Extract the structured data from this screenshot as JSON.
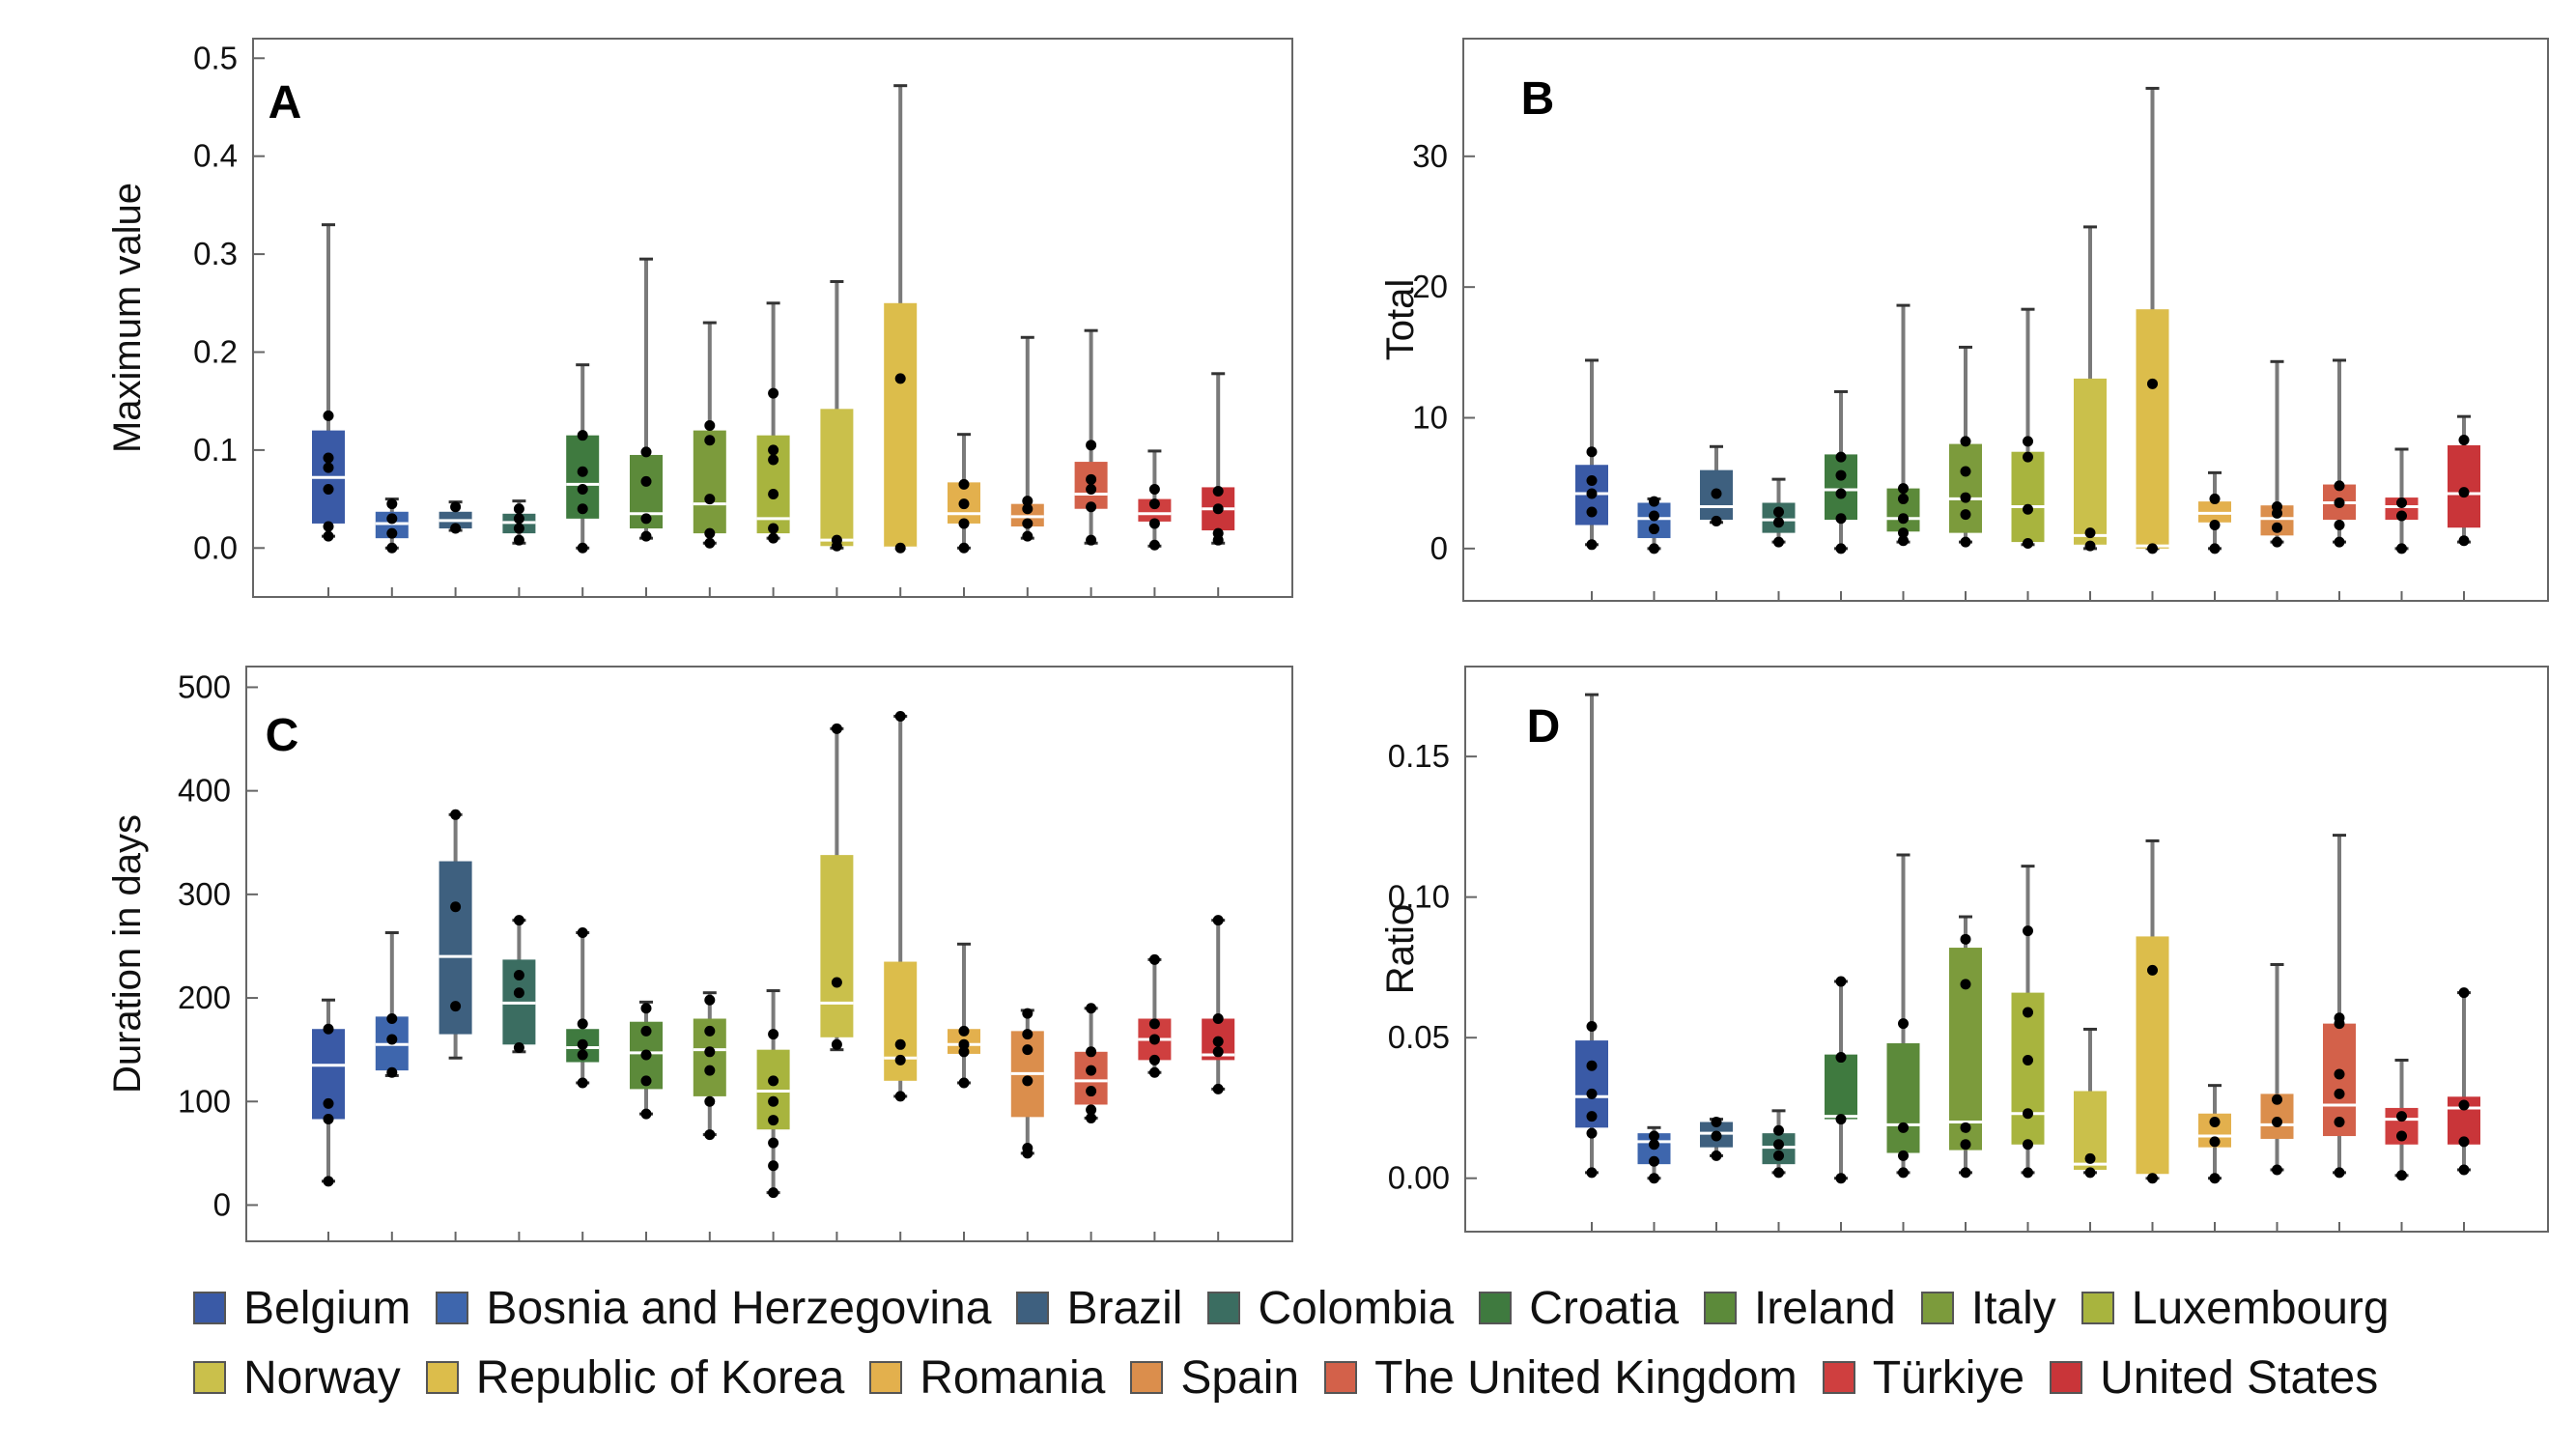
{
  "chart_data": [
    {
      "type": "box",
      "panel_label": "A",
      "ylabel": "Maximum value",
      "ylim": [
        -0.05,
        0.52
      ],
      "yticks": [
        "0.0",
        "0.1",
        "0.2",
        "0.3",
        "0.4",
        "0.5"
      ],
      "boxes": [
        {
          "country": "Belgium",
          "min": 0.012,
          "q1": 0.025,
          "median": 0.072,
          "q3": 0.12,
          "max": 0.33,
          "points": [
            0.012,
            0.022,
            0.06,
            0.082,
            0.092,
            0.135
          ]
        },
        {
          "country": "Bosnia and Herzegovina",
          "min": 0.0,
          "q1": 0.01,
          "median": 0.025,
          "q3": 0.037,
          "max": 0.05,
          "points": [
            0.0,
            0.015,
            0.03,
            0.045
          ]
        },
        {
          "country": "Brazil",
          "min": 0.018,
          "q1": 0.02,
          "median": 0.028,
          "q3": 0.037,
          "max": 0.047,
          "points": [
            0.02,
            0.042
          ]
        },
        {
          "country": "Colombia",
          "min": 0.005,
          "q1": 0.015,
          "median": 0.026,
          "q3": 0.035,
          "max": 0.048,
          "points": [
            0.008,
            0.02,
            0.03,
            0.04
          ]
        },
        {
          "country": "Croatia",
          "min": 0.0,
          "q1": 0.03,
          "median": 0.065,
          "q3": 0.115,
          "max": 0.187,
          "points": [
            0.0,
            0.04,
            0.06,
            0.078,
            0.115
          ]
        },
        {
          "country": "Ireland",
          "min": 0.01,
          "q1": 0.02,
          "median": 0.035,
          "q3": 0.095,
          "max": 0.295,
          "points": [
            0.012,
            0.03,
            0.068,
            0.098
          ]
        },
        {
          "country": "Italy",
          "min": 0.005,
          "q1": 0.015,
          "median": 0.045,
          "q3": 0.12,
          "max": 0.23,
          "points": [
            0.005,
            0.015,
            0.05,
            0.11,
            0.125
          ]
        },
        {
          "country": "Luxembourg",
          "min": 0.01,
          "q1": 0.015,
          "median": 0.03,
          "q3": 0.115,
          "max": 0.25,
          "points": [
            0.01,
            0.02,
            0.055,
            0.09,
            0.1,
            0.158
          ]
        },
        {
          "country": "Norway",
          "min": 0.0,
          "q1": 0.002,
          "median": 0.008,
          "q3": 0.142,
          "max": 0.272,
          "points": [
            0.002,
            0.008
          ]
        },
        {
          "country": "Republic of Korea",
          "min": 0.0,
          "q1": 0.0,
          "median": 0.0,
          "q3": 0.25,
          "max": 0.472,
          "points": [
            0.0,
            0.173
          ]
        },
        {
          "country": "Romania",
          "min": 0.0,
          "q1": 0.025,
          "median": 0.035,
          "q3": 0.067,
          "max": 0.116,
          "points": [
            0.0,
            0.025,
            0.045,
            0.065
          ]
        },
        {
          "country": "Spain",
          "min": 0.01,
          "q1": 0.022,
          "median": 0.032,
          "q3": 0.045,
          "max": 0.215,
          "points": [
            0.012,
            0.025,
            0.04,
            0.048
          ]
        },
        {
          "country": "The United Kingdom",
          "min": 0.005,
          "q1": 0.04,
          "median": 0.055,
          "q3": 0.088,
          "max": 0.222,
          "points": [
            0.008,
            0.042,
            0.06,
            0.07,
            0.105
          ]
        },
        {
          "country": "Türkiye",
          "min": 0.002,
          "q1": 0.027,
          "median": 0.035,
          "q3": 0.05,
          "max": 0.099,
          "points": [
            0.003,
            0.025,
            0.045,
            0.06
          ]
        },
        {
          "country": "United States",
          "min": 0.005,
          "q1": 0.018,
          "median": 0.04,
          "q3": 0.062,
          "max": 0.178,
          "points": [
            0.008,
            0.015,
            0.04,
            0.058
          ]
        }
      ]
    },
    {
      "type": "box",
      "panel_label": "B",
      "ylabel": "Total",
      "ylim": [
        -4,
        39
      ],
      "yticks": [
        "0",
        "10",
        "20",
        "30"
      ],
      "boxes": [
        {
          "country": "Belgium",
          "min": 0.3,
          "q1": 1.8,
          "median": 4.2,
          "q3": 6.4,
          "max": 14.4,
          "points": [
            0.3,
            2.8,
            4.2,
            5.2,
            7.4
          ]
        },
        {
          "country": "Bosnia and Herzegovina",
          "min": 0.0,
          "q1": 0.8,
          "median": 2.3,
          "q3": 3.5,
          "max": 3.8,
          "points": [
            0.0,
            1.5,
            2.5,
            3.6
          ]
        },
        {
          "country": "Brazil",
          "min": 2.0,
          "q1": 2.2,
          "median": 3.2,
          "q3": 6.0,
          "max": 7.8,
          "points": [
            2.1,
            4.2
          ]
        },
        {
          "country": "Colombia",
          "min": 0.5,
          "q1": 1.2,
          "median": 2.2,
          "q3": 3.5,
          "max": 5.3,
          "points": [
            0.5,
            2.0,
            2.8
          ]
        },
        {
          "country": "Croatia",
          "min": 0.0,
          "q1": 2.2,
          "median": 4.5,
          "q3": 7.2,
          "max": 12.0,
          "points": [
            0.0,
            2.3,
            4.2,
            5.6,
            7.0
          ]
        },
        {
          "country": "Ireland",
          "min": 0.5,
          "q1": 1.3,
          "median": 2.3,
          "q3": 4.6,
          "max": 18.6,
          "points": [
            0.6,
            1.2,
            2.3,
            3.8,
            4.6
          ]
        },
        {
          "country": "Italy",
          "min": 0.5,
          "q1": 1.2,
          "median": 3.8,
          "q3": 8.0,
          "max": 15.4,
          "points": [
            0.5,
            2.6,
            3.9,
            5.9,
            8.2
          ]
        },
        {
          "country": "Luxembourg",
          "min": 0.3,
          "q1": 0.5,
          "median": 3.2,
          "q3": 7.4,
          "max": 18.3,
          "points": [
            0.4,
            3.0,
            7.0,
            8.2
          ]
        },
        {
          "country": "Norway",
          "min": 0.0,
          "q1": 0.3,
          "median": 1.0,
          "q3": 13.0,
          "max": 24.6,
          "points": [
            0.2,
            1.2
          ]
        },
        {
          "country": "Republic of Korea",
          "min": 0.0,
          "q1": 0.0,
          "median": 0.2,
          "q3": 18.3,
          "max": 35.2,
          "points": [
            0.0,
            12.6
          ]
        },
        {
          "country": "Romania",
          "min": 0.0,
          "q1": 2.0,
          "median": 2.7,
          "q3": 3.6,
          "max": 5.8,
          "points": [
            0.0,
            1.8,
            3.8
          ]
        },
        {
          "country": "Spain",
          "min": 0.5,
          "q1": 1.0,
          "median": 2.3,
          "q3": 3.3,
          "max": 14.3,
          "points": [
            0.5,
            1.6,
            2.7,
            3.2
          ]
        },
        {
          "country": "The United Kingdom",
          "min": 0.5,
          "q1": 2.2,
          "median": 3.5,
          "q3": 4.9,
          "max": 14.4,
          "points": [
            0.5,
            1.8,
            3.5,
            4.8
          ]
        },
        {
          "country": "Türkiye",
          "min": 0.0,
          "q1": 2.2,
          "median": 3.2,
          "q3": 3.9,
          "max": 7.6,
          "points": [
            0.0,
            2.5,
            3.5
          ]
        },
        {
          "country": "United States",
          "min": 0.5,
          "q1": 1.6,
          "median": 4.2,
          "q3": 7.9,
          "max": 10.1,
          "points": [
            0.6,
            4.3,
            8.3
          ]
        }
      ]
    },
    {
      "type": "box",
      "panel_label": "C",
      "ylabel": "Duration in days",
      "ylim": [
        -35,
        520
      ],
      "yticks": [
        "0",
        "100",
        "200",
        "300",
        "400",
        "500"
      ],
      "boxes": [
        {
          "country": "Belgium",
          "min": 23,
          "q1": 83,
          "median": 135,
          "q3": 170,
          "max": 198,
          "points": [
            23,
            83,
            98,
            170
          ]
        },
        {
          "country": "Bosnia and Herzegovina",
          "min": 125,
          "q1": 130,
          "median": 155,
          "q3": 182,
          "max": 263,
          "points": [
            128,
            160,
            180
          ]
        },
        {
          "country": "Brazil",
          "min": 142,
          "q1": 165,
          "median": 240,
          "q3": 332,
          "max": 377,
          "points": [
            192,
            288,
            377
          ]
        },
        {
          "country": "Colombia",
          "min": 148,
          "q1": 155,
          "median": 195,
          "q3": 237,
          "max": 275,
          "points": [
            152,
            205,
            222,
            275
          ]
        },
        {
          "country": "Croatia",
          "min": 118,
          "q1": 138,
          "median": 152,
          "q3": 170,
          "max": 263,
          "points": [
            118,
            145,
            155,
            175,
            263
          ]
        },
        {
          "country": "Ireland",
          "min": 88,
          "q1": 112,
          "median": 147,
          "q3": 177,
          "max": 196,
          "points": [
            88,
            120,
            145,
            168,
            190
          ]
        },
        {
          "country": "Italy",
          "min": 68,
          "q1": 105,
          "median": 150,
          "q3": 180,
          "max": 205,
          "points": [
            68,
            100,
            130,
            148,
            168,
            198
          ]
        },
        {
          "country": "Luxembourg",
          "min": 12,
          "q1": 73,
          "median": 110,
          "q3": 150,
          "max": 207,
          "points": [
            12,
            38,
            60,
            82,
            100,
            120,
            165
          ]
        },
        {
          "country": "Norway",
          "min": 150,
          "q1": 162,
          "median": 195,
          "q3": 338,
          "max": 460,
          "points": [
            155,
            215,
            460
          ]
        },
        {
          "country": "Republic of Korea",
          "min": 105,
          "q1": 120,
          "median": 142,
          "q3": 235,
          "max": 472,
          "points": [
            105,
            140,
            155,
            472
          ]
        },
        {
          "country": "Romania",
          "min": 118,
          "q1": 146,
          "median": 155,
          "q3": 170,
          "max": 252,
          "points": [
            118,
            148,
            155,
            168
          ]
        },
        {
          "country": "Spain",
          "min": 50,
          "q1": 85,
          "median": 127,
          "q3": 168,
          "max": 188,
          "points": [
            50,
            55,
            120,
            150,
            165,
            185
          ]
        },
        {
          "country": "The United Kingdom",
          "min": 84,
          "q1": 97,
          "median": 120,
          "q3": 148,
          "max": 190,
          "points": [
            84,
            92,
            110,
            130,
            148,
            190
          ]
        },
        {
          "country": "Türkiye",
          "min": 128,
          "q1": 140,
          "median": 160,
          "q3": 180,
          "max": 237,
          "points": [
            128,
            140,
            160,
            175,
            237
          ]
        },
        {
          "country": "United States",
          "min": 112,
          "q1": 140,
          "median": 145,
          "q3": 180,
          "max": 275,
          "points": [
            112,
            148,
            158,
            180,
            275
          ]
        }
      ]
    },
    {
      "type": "box",
      "panel_label": "D",
      "ylabel": "Ratio",
      "ylim": [
        -0.019,
        0.182
      ],
      "yticks": [
        "0.00",
        "0.05",
        "0.10",
        "0.15"
      ],
      "boxes": [
        {
          "country": "Belgium",
          "min": 0.002,
          "q1": 0.018,
          "median": 0.029,
          "q3": 0.049,
          "max": 0.172,
          "points": [
            0.002,
            0.016,
            0.022,
            0.03,
            0.04,
            0.054
          ]
        },
        {
          "country": "Bosnia and Herzegovina",
          "min": 0.0,
          "q1": 0.005,
          "median": 0.013,
          "q3": 0.016,
          "max": 0.018,
          "points": [
            0.0,
            0.006,
            0.012,
            0.015
          ]
        },
        {
          "country": "Brazil",
          "min": 0.008,
          "q1": 0.011,
          "median": 0.016,
          "q3": 0.02,
          "max": 0.021,
          "points": [
            0.008,
            0.015,
            0.02
          ]
        },
        {
          "country": "Colombia",
          "min": 0.002,
          "q1": 0.005,
          "median": 0.011,
          "q3": 0.016,
          "max": 0.024,
          "points": [
            0.002,
            0.008,
            0.012,
            0.017
          ]
        },
        {
          "country": "Croatia",
          "min": 0.0,
          "q1": 0.021,
          "median": 0.022,
          "q3": 0.044,
          "max": 0.07,
          "points": [
            0.0,
            0.021,
            0.043,
            0.07
          ]
        },
        {
          "country": "Ireland",
          "min": 0.002,
          "q1": 0.009,
          "median": 0.019,
          "q3": 0.048,
          "max": 0.115,
          "points": [
            0.002,
            0.008,
            0.018,
            0.055
          ]
        },
        {
          "country": "Italy",
          "min": 0.002,
          "q1": 0.01,
          "median": 0.02,
          "q3": 0.082,
          "max": 0.093,
          "points": [
            0.002,
            0.012,
            0.018,
            0.069,
            0.085
          ]
        },
        {
          "country": "Luxembourg",
          "min": 0.002,
          "q1": 0.012,
          "median": 0.023,
          "q3": 0.066,
          "max": 0.111,
          "points": [
            0.002,
            0.012,
            0.023,
            0.042,
            0.059,
            0.088
          ]
        },
        {
          "country": "Norway",
          "min": 0.002,
          "q1": 0.003,
          "median": 0.005,
          "q3": 0.031,
          "max": 0.053,
          "points": [
            0.002,
            0.007
          ]
        },
        {
          "country": "Republic of Korea",
          "min": 0.0,
          "q1": 0.001,
          "median": 0.001,
          "q3": 0.086,
          "max": 0.12,
          "points": [
            0.0,
            0.074
          ]
        },
        {
          "country": "Romania",
          "min": 0.0,
          "q1": 0.011,
          "median": 0.015,
          "q3": 0.023,
          "max": 0.033,
          "points": [
            0.0,
            0.013,
            0.02
          ]
        },
        {
          "country": "Spain",
          "min": 0.003,
          "q1": 0.014,
          "median": 0.019,
          "q3": 0.03,
          "max": 0.076,
          "points": [
            0.003,
            0.02,
            0.028
          ]
        },
        {
          "country": "The United Kingdom",
          "min": 0.002,
          "q1": 0.015,
          "median": 0.026,
          "q3": 0.055,
          "max": 0.122,
          "points": [
            0.002,
            0.02,
            0.03,
            0.037,
            0.055,
            0.057
          ]
        },
        {
          "country": "Türkiye",
          "min": 0.001,
          "q1": 0.012,
          "median": 0.021,
          "q3": 0.025,
          "max": 0.042,
          "points": [
            0.001,
            0.015,
            0.022
          ]
        },
        {
          "country": "United States",
          "min": 0.003,
          "q1": 0.012,
          "median": 0.025,
          "q3": 0.029,
          "max": 0.066,
          "points": [
            0.003,
            0.013,
            0.026,
            0.066
          ]
        }
      ]
    }
  ],
  "legend": {
    "rows": [
      [
        {
          "label": "Belgium",
          "color": "#3a5aa6"
        },
        {
          "label": "Bosnia and Herzegovina",
          "color": "#3e66ad"
        },
        {
          "label": "Brazil",
          "color": "#3e607f"
        },
        {
          "label": "Colombia",
          "color": "#3b6d61"
        },
        {
          "label": "Croatia",
          "color": "#3f7a3f"
        },
        {
          "label": "Ireland",
          "color": "#5c8a3a"
        },
        {
          "label": "Italy",
          "color": "#7c9b3c"
        },
        {
          "label": "Luxembourg",
          "color": "#a8b43e"
        }
      ],
      [
        {
          "label": "Norway",
          "color": "#cac04b"
        },
        {
          "label": "Republic of Korea",
          "color": "#dcbd4b"
        },
        {
          "label": "Romania",
          "color": "#e3b04d"
        },
        {
          "label": "Spain",
          "color": "#db8e4c"
        },
        {
          "label": "The United Kingdom",
          "color": "#d3614a"
        },
        {
          "label": "Türkiye",
          "color": "#cf3f3f"
        },
        {
          "label": "United States",
          "color": "#c93539"
        }
      ]
    ]
  }
}
